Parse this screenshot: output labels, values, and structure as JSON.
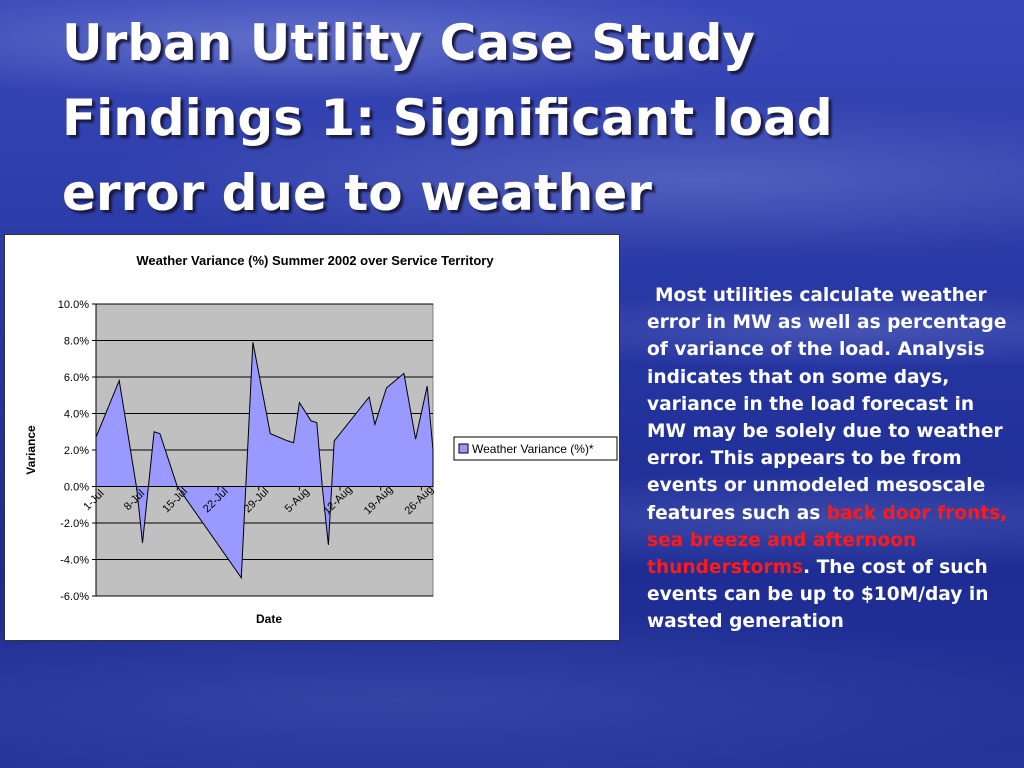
{
  "slide": {
    "title_lines": [
      "Urban Utility Case Study",
      "Findings 1: Significant load",
      "error due to weather"
    ],
    "body": {
      "part1": "Most utilities calculate weather error in MW as well as percentage of variance of the load. Analysis indicates that on some days, variance in the load forecast in MW may be solely due to weather error. This appears to be from events or unmodeled mesoscale features such as ",
      "highlight": "back door fronts, sea breeze and afternoon thunderstorms",
      "part2": ". The cost of such events can be up to $10M/day in wasted generation"
    },
    "colors": {
      "highlight": "#ff1a1a",
      "title": "#ffffff",
      "area_fill": "#9999ff",
      "plot_background": "#c0c0c0"
    }
  },
  "chart_data": {
    "type": "area",
    "title": "Weather Variance (%) Summer 2002 over Service Territory",
    "xlabel": "Date",
    "ylabel": "Variance",
    "ylim": [
      -6,
      10
    ],
    "yticks": [
      "10.0%",
      "8.0%",
      "6.0%",
      "4.0%",
      "2.0%",
      "0.0%",
      "-2.0%",
      "-4.0%",
      "-6.0%"
    ],
    "xticks": [
      "1-Jul",
      "8-Jul",
      "15-Jul",
      "22-Jul",
      "29-Jul",
      "5-Aug",
      "12-Aug",
      "19-Aug",
      "26-Aug"
    ],
    "grid": true,
    "legend_position": "right",
    "series": [
      {
        "name": "Weather Variance (%)*",
        "points": [
          [
            "2002-07-01",
            2.7
          ],
          [
            "2002-07-05",
            5.8
          ],
          [
            "2002-07-08",
            -0.1
          ],
          [
            "2002-07-09",
            -3.1
          ],
          [
            "2002-07-11",
            3.0
          ],
          [
            "2002-07-12",
            2.9
          ],
          [
            "2002-07-15",
            0.0
          ],
          [
            "2002-07-26",
            -5.0
          ],
          [
            "2002-07-28",
            7.9
          ],
          [
            "2002-07-31",
            2.9
          ],
          [
            "2002-08-03",
            2.5
          ],
          [
            "2002-08-04",
            2.4
          ],
          [
            "2002-08-05",
            4.6
          ],
          [
            "2002-08-07",
            3.6
          ],
          [
            "2002-08-08",
            3.5
          ],
          [
            "2002-08-09",
            -0.2
          ],
          [
            "2002-08-10",
            -3.2
          ],
          [
            "2002-08-11",
            2.5
          ],
          [
            "2002-08-17",
            4.9
          ],
          [
            "2002-08-18",
            3.4
          ],
          [
            "2002-08-20",
            5.4
          ],
          [
            "2002-08-23",
            6.2
          ],
          [
            "2002-08-25",
            2.6
          ],
          [
            "2002-08-27",
            5.5
          ],
          [
            "2002-08-28",
            2.0
          ]
        ]
      }
    ]
  }
}
